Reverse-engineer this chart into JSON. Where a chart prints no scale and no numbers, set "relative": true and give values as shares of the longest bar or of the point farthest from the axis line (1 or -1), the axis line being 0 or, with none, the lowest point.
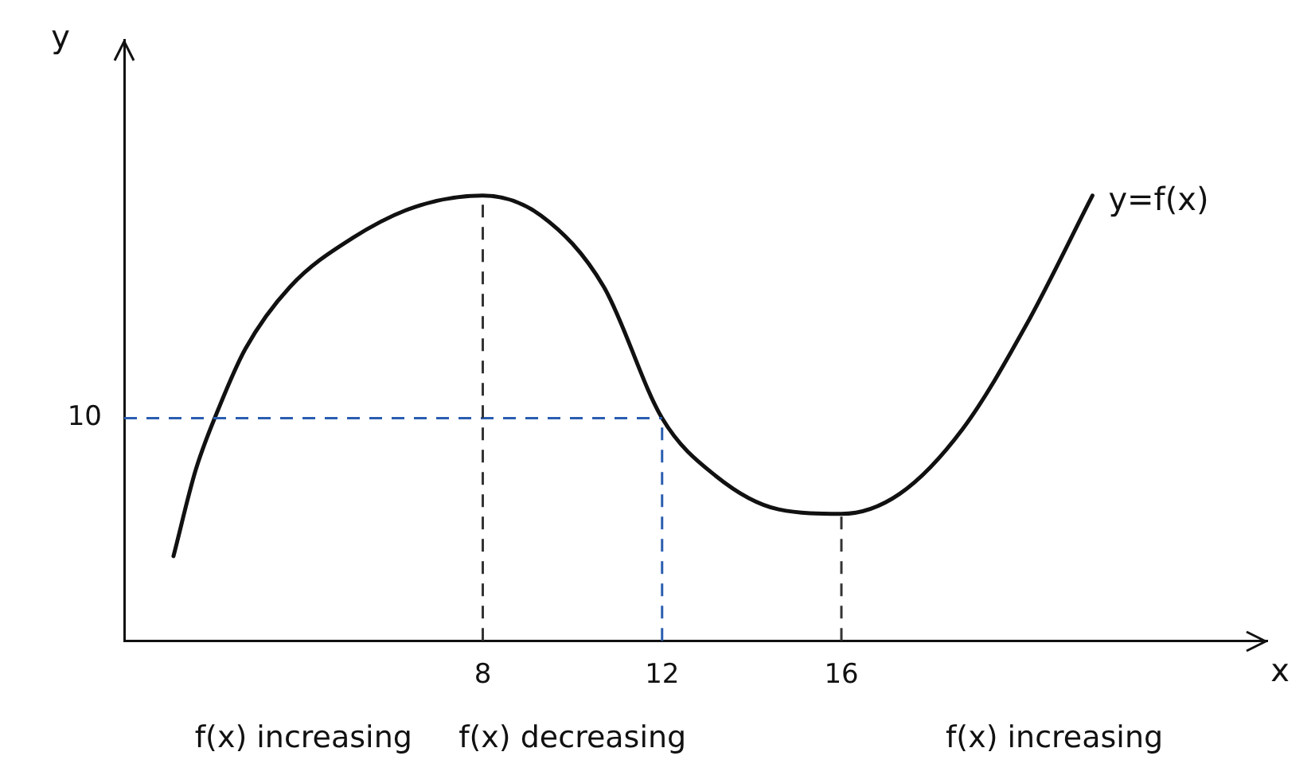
{
  "chart_data": {
    "type": "line",
    "xlabel": "x",
    "ylabel": "y",
    "relative": true,
    "xlim": [
      0,
      25.5
    ],
    "xticks": [
      8,
      12,
      16
    ],
    "series": [
      {
        "name": "y=f(x)",
        "color": "#111111",
        "x": [
          1.1,
          1.6,
          2.1,
          2.7,
          3.7,
          5.1,
          6.5,
          8,
          9.3,
          10.7,
          12,
          13.2,
          14.6,
          16,
          17.3,
          18.7,
          20.1,
          21.6
        ],
        "values": [
          0.19,
          0.385,
          0.52,
          0.655,
          0.795,
          0.905,
          0.975,
          1,
          0.955,
          0.795,
          0.5,
          0.37,
          0.295,
          0.285,
          0.33,
          0.475,
          0.705,
          1
        ]
      }
    ],
    "ref_lines": [
      {
        "axis": "y",
        "value": 0.5,
        "color": "#2a5db0",
        "line_style": "dashed"
      },
      {
        "axis": "x",
        "value": 12,
        "color": "#2a5db0",
        "line_style": "dashed"
      },
      {
        "axis": "x",
        "value": 8,
        "color": "#333333",
        "line_style": "dashed"
      },
      {
        "axis": "x",
        "value": 16,
        "color": "#333333",
        "line_style": "dashed"
      }
    ],
    "annotations": [
      "10",
      "f(x) increasing",
      "f(x) decreasing",
      "f(x) increasing"
    ],
    "marker": "none",
    "line_style": "solid",
    "legend": false
  }
}
